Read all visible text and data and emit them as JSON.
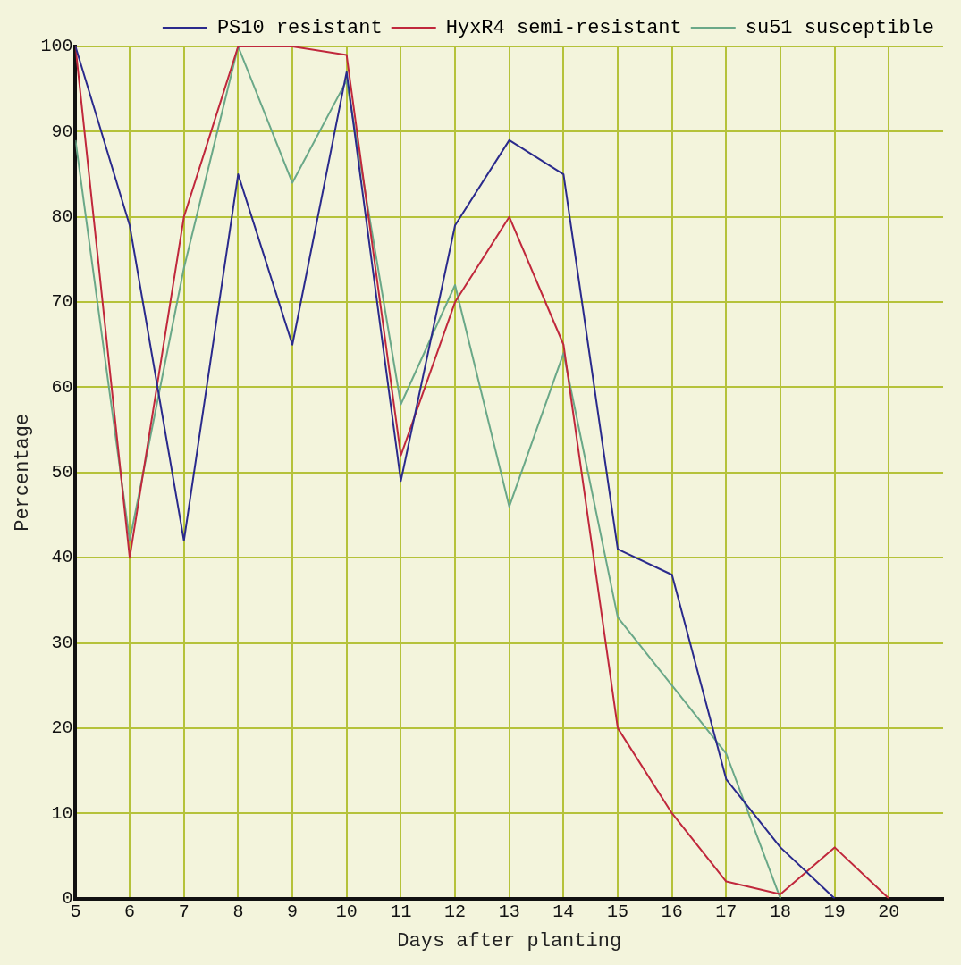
{
  "chart_data": {
    "type": "line",
    "xlabel": "Days after planting",
    "ylabel": "Percentage",
    "x": [
      5,
      6,
      7,
      8,
      9,
      10,
      11,
      12,
      13,
      14,
      15,
      16,
      17,
      18,
      19,
      20
    ],
    "series": [
      {
        "name": "PS10 resistant",
        "color": "#2a2a8c",
        "values": [
          100,
          79,
          42,
          85,
          65,
          97,
          49,
          79,
          89,
          85,
          41,
          38,
          14,
          6,
          0,
          null
        ]
      },
      {
        "name": "HyxR4 semi-resistant",
        "color": "#c0283c",
        "values": [
          100,
          40,
          80,
          100,
          100,
          99,
          52,
          70,
          80,
          65,
          20,
          10,
          2,
          0.5,
          6,
          0
        ]
      },
      {
        "name": "su51 susceptible",
        "color": "#6aa888",
        "values": [
          89,
          42,
          74,
          100,
          84,
          96,
          58,
          72,
          46,
          64,
          33,
          25,
          17,
          0,
          null,
          null
        ]
      }
    ],
    "xlim": [
      5,
      21
    ],
    "xticks": [
      5,
      6,
      7,
      8,
      9,
      10,
      11,
      12,
      13,
      14,
      15,
      16,
      17,
      18,
      19,
      20
    ],
    "ylim": [
      0,
      100
    ],
    "yticks": [
      0,
      10,
      20,
      30,
      40,
      50,
      60,
      70,
      80,
      90,
      100
    ],
    "grid": true,
    "legend": "top right",
    "marker": "none",
    "line_style": "solid"
  }
}
